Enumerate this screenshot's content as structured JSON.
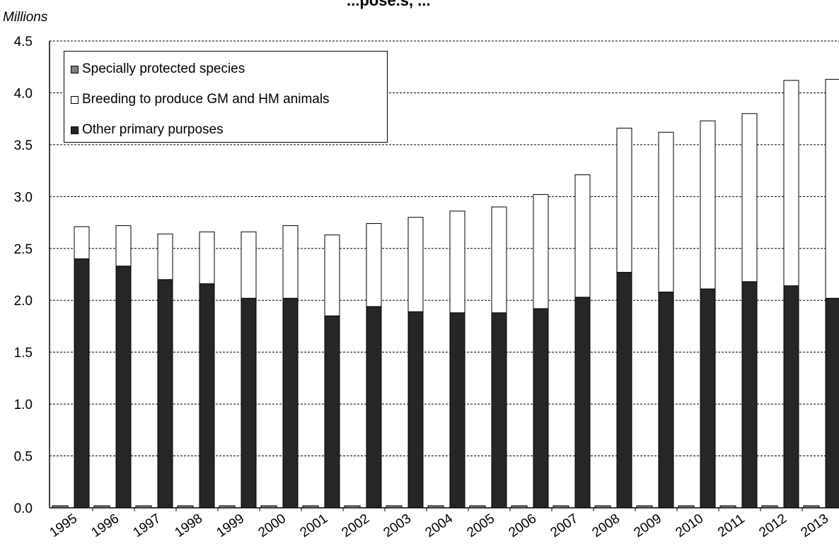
{
  "chart_data": {
    "type": "bar",
    "stacked": true,
    "title": "...pose.s, ...",
    "unit_label": "Millions",
    "ylim": [
      0,
      4.5
    ],
    "yticks": [
      "0.0",
      "0.5",
      "1.0",
      "1.5",
      "2.0",
      "2.5",
      "3.0",
      "3.5",
      "4.0",
      "4.5"
    ],
    "grid": true,
    "legend_position": "top-left",
    "categories": [
      "1995",
      "1996",
      "1997",
      "1998",
      "1999",
      "2000",
      "2001",
      "2002",
      "2003",
      "2004",
      "2005",
      "2006",
      "2007",
      "2008",
      "2009",
      "2010",
      "2011",
      "2012",
      "2013"
    ],
    "series": [
      {
        "name": "Specially protected species",
        "color": "#808080",
        "values": [
          0.02,
          0.02,
          0.02,
          0.02,
          0.02,
          0.02,
          0.02,
          0.02,
          0.02,
          0.02,
          0.02,
          0.02,
          0.02,
          0.02,
          0.02,
          0.02,
          0.02,
          0.02,
          0.02
        ]
      },
      {
        "name": "Other primary purposes",
        "color": "#262626",
        "values": [
          2.4,
          2.33,
          2.2,
          2.16,
          2.02,
          2.02,
          1.85,
          1.94,
          1.89,
          1.88,
          1.88,
          1.92,
          2.03,
          2.27,
          2.08,
          2.11,
          2.18,
          2.14,
          2.02
        ]
      },
      {
        "name": "Breeding to produce GM and HM animals",
        "color": "#ffffff",
        "values": [
          0.31,
          0.39,
          0.44,
          0.5,
          0.64,
          0.7,
          0.78,
          0.8,
          0.91,
          0.98,
          1.02,
          1.1,
          1.18,
          1.39,
          1.54,
          1.62,
          1.62,
          1.98,
          2.11
        ]
      }
    ],
    "legend_order": [
      "Specially protected species",
      "Breeding to produce GM and HM animals",
      "Other primary purposes"
    ]
  }
}
